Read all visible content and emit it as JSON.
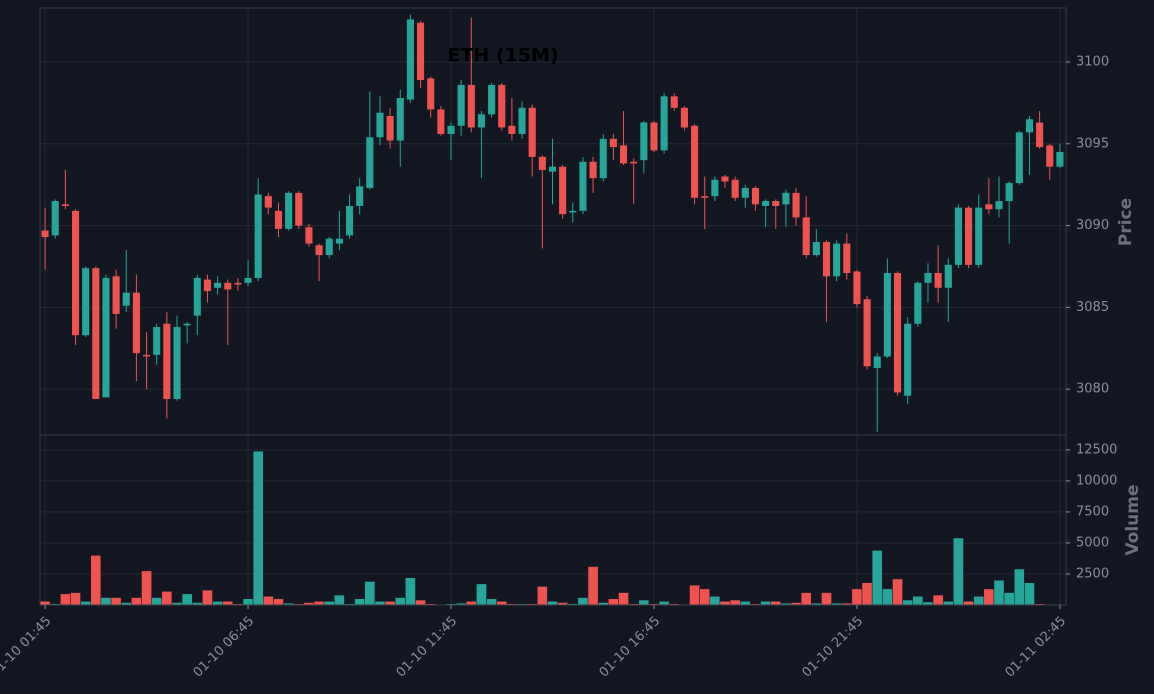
{
  "chart_data": {
    "type": "candlestick",
    "title": "ETH (15M)",
    "ylabel": "Price",
    "volume_label": "Volume",
    "up_color": "#26a69a",
    "down_color": "#ef5350",
    "grid": true,
    "xlim": [
      -0.5,
      100.6
    ],
    "xticks": [
      {
        "value": 0,
        "label": "01-10 01:45"
      },
      {
        "value": 20,
        "label": "01-10 06:45"
      },
      {
        "value": 40,
        "label": "01-10 11:45"
      },
      {
        "value": 60,
        "label": "01-10 16:45"
      },
      {
        "value": 80,
        "label": "01-10 21:45"
      },
      {
        "value": 100,
        "label": "01-11 02:45"
      }
    ],
    "ylim": [
      3077.2,
      3103.3
    ],
    "yticks": [
      3080,
      3085,
      3090,
      3095,
      3100
    ],
    "volume_ylim": [
      0,
      13700
    ],
    "volume_yticks": [
      2500,
      5000,
      7500,
      10000,
      12500
    ],
    "open": [
      3089.7,
      3089.4,
      3091.3,
      3090.9,
      3083.3,
      3087.4,
      3079.5,
      3086.9,
      3085.1,
      3085.9,
      3082.1,
      3082.1,
      3084,
      3079.4,
      3083.9,
      3084.5,
      3086.7,
      3086.2,
      3086.5,
      3086.5,
      3086.5,
      3086.8,
      3091.8,
      3090.9,
      3089.8,
      3092,
      3089.9,
      3088.8,
      3088.2,
      3088.9,
      3089.4,
      3091.2,
      3092.3,
      3095.4,
      3096.7,
      3095.2,
      3097.7,
      3102.4,
      3099,
      3097.1,
      3095.6,
      3096.1,
      3098.6,
      3096,
      3096.8,
      3098.6,
      3096.1,
      3095.6,
      3097.2,
      3094.2,
      3093.3,
      3093.6,
      3090.8,
      3090.9,
      3093.9,
      3092.9,
      3095.3,
      3094.9,
      3093.9,
      3094,
      3096.3,
      3094.6,
      3097.9,
      3097.2,
      3096.1,
      3091.8,
      3091.8,
      3093,
      3092.8,
      3091.7,
      3092.3,
      3091.2,
      3091.5,
      3091.3,
      3092,
      3090.5,
      3088.2,
      3089,
      3086.9,
      3088.9,
      3087.2,
      3085.5,
      3081.3,
      3082,
      3087.1,
      3079.6,
      3084,
      3086.5,
      3087.1,
      3086.2,
      3087.6,
      3091.1,
      3087.6,
      3091.3,
      3091,
      3091.5,
      3092.6,
      3095.7,
      3096.3,
      3094.9,
      3093.6
    ],
    "high": [
      3091.1,
      3091.6,
      3093.4,
      3091,
      3087.5,
      3087.5,
      3087,
      3087.3,
      3088.5,
      3087,
      3083.5,
      3084,
      3084.7,
      3084.5,
      3084.1,
      3087,
      3087,
      3086.9,
      3086.7,
      3086.8,
      3087.9,
      3092.9,
      3092,
      3091.4,
      3092.1,
      3092.1,
      3090.1,
      3088.9,
      3089.3,
      3090.9,
      3091.9,
      3092.9,
      3098.2,
      3097.9,
      3097.2,
      3098.3,
      3102.9,
      3102.5,
      3099.1,
      3097.3,
      3096.3,
      3098.9,
      3102.7,
      3097,
      3098.7,
      3098.7,
      3097.8,
      3097.6,
      3097.4,
      3094.3,
      3095.3,
      3093.7,
      3091.4,
      3094.2,
      3094.2,
      3095.6,
      3095.6,
      3097,
      3094.1,
      3096.4,
      3096.4,
      3098.1,
      3098.1,
      3097.3,
      3096.2,
      3093,
      3093,
      3093.1,
      3093,
      3092.5,
      3092.4,
      3091.6,
      3091.6,
      3092.2,
      3092.3,
      3091.8,
      3089.8,
      3089.1,
      3089.1,
      3089.5,
      3087.3,
      3085.7,
      3082.2,
      3088,
      3087.2,
      3084.4,
      3086.6,
      3087.7,
      3088.8,
      3088,
      3091.3,
      3091.2,
      3091.9,
      3092.9,
      3093,
      3092.7,
      3095.8,
      3096.7,
      3097,
      3095,
      3095
    ],
    "low": [
      3087.3,
      3089.2,
      3091,
      3082.7,
      3083.2,
      3079.4,
      3079.5,
      3083.7,
      3084.7,
      3080.5,
      3080,
      3081.5,
      3078.2,
      3079.3,
      3082.8,
      3083.3,
      3085.3,
      3085.8,
      3082.7,
      3086,
      3086.3,
      3086.6,
      3090.7,
      3089.3,
      3089.7,
      3089.8,
      3088.7,
      3086.6,
      3088,
      3088.5,
      3089.2,
      3090.7,
      3092.2,
      3094.9,
      3094.7,
      3093.6,
      3097.5,
      3098.4,
      3096.6,
      3095.5,
      3094,
      3095.5,
      3095.7,
      3092.9,
      3096.6,
      3095.8,
      3095.2,
      3095.3,
      3093,
      3088.6,
      3091.3,
      3090.4,
      3090.2,
      3090.7,
      3092,
      3092.7,
      3094,
      3093.7,
      3091.3,
      3093.2,
      3094.5,
      3094.4,
      3097,
      3095.8,
      3091.3,
      3089.8,
      3091.5,
      3092.3,
      3091.5,
      3091.1,
      3090.9,
      3089.9,
      3089.8,
      3089.9,
      3090,
      3088,
      3088.1,
      3084.1,
      3086.6,
      3086.7,
      3085,
      3081.2,
      3077.4,
      3081.9,
      3079.6,
      3079.1,
      3083.8,
      3085.3,
      3085.3,
      3084.1,
      3087.4,
      3087.4,
      3087.4,
      3090.7,
      3090.5,
      3088.9,
      3092.5,
      3093.1,
      3094.7,
      3092.8,
      3093.5
    ],
    "close": [
      3089.3,
      3091.5,
      3091.2,
      3083.3,
      3087.4,
      3079.4,
      3086.8,
      3084.6,
      3085.9,
      3082.2,
      3082,
      3083.8,
      3079.4,
      3083.8,
      3084,
      3086.8,
      3086,
      3086.5,
      3086.1,
      3086.4,
      3086.8,
      3091.9,
      3091.1,
      3089.8,
      3092,
      3090,
      3088.9,
      3088.2,
      3089.2,
      3089.2,
      3091.2,
      3092.4,
      3095.4,
      3096.9,
      3095.2,
      3097.8,
      3102.6,
      3098.9,
      3097.1,
      3095.6,
      3096.1,
      3098.6,
      3096,
      3096.8,
      3098.6,
      3096,
      3095.6,
      3097.2,
      3094.2,
      3093.4,
      3093.6,
      3090.7,
      3090.9,
      3093.9,
      3092.9,
      3095.3,
      3094.8,
      3093.8,
      3093.8,
      3096.3,
      3094.6,
      3097.9,
      3097.2,
      3096,
      3091.7,
      3091.7,
      3092.8,
      3092.7,
      3091.7,
      3092.3,
      3091.3,
      3091.5,
      3091.2,
      3092,
      3090.5,
      3088.2,
      3089,
      3086.9,
      3088.9,
      3087.1,
      3085.2,
      3081.4,
      3082,
      3087.1,
      3079.8,
      3084,
      3086.5,
      3087.1,
      3086.2,
      3087.6,
      3091.1,
      3087.6,
      3091.1,
      3091,
      3091.5,
      3092.6,
      3095.7,
      3096.5,
      3094.8,
      3093.6,
      3094.5
    ],
    "volume": [
      300,
      100,
      900,
      1000,
      300,
      4000,
      600,
      600,
      200,
      600,
      2750,
      600,
      1100,
      200,
      900,
      200,
      1200,
      300,
      300,
      100,
      500,
      12400,
      700,
      500,
      150,
      100,
      200,
      300,
      300,
      800,
      100,
      500,
      1900,
      300,
      300,
      600,
      2200,
      400,
      100,
      50,
      100,
      150,
      300,
      1700,
      500,
      300,
      100,
      100,
      100,
      1500,
      300,
      200,
      100,
      600,
      3100,
      200,
      500,
      1000,
      100,
      400,
      100,
      300,
      100,
      50,
      1600,
      1300,
      700,
      300,
      400,
      300,
      100,
      300,
      300,
      150,
      200,
      1000,
      150,
      1000,
      150,
      150,
      1300,
      1800,
      4400,
      1300,
      2100,
      400,
      700,
      250,
      800,
      300,
      5400,
      300,
      700,
      1300,
      2000,
      1000,
      2900,
      1800,
      100,
      50,
      50
    ]
  }
}
